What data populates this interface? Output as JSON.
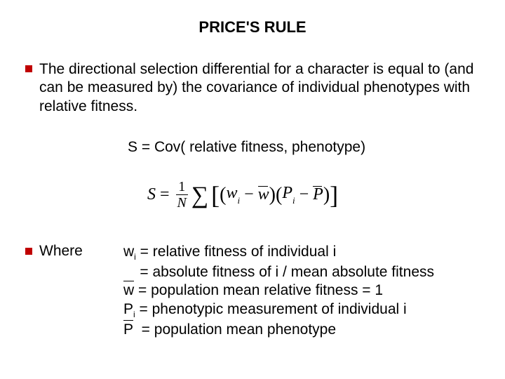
{
  "colors": {
    "background": "#ffffff",
    "text": "#000000",
    "bullet": "#c00000"
  },
  "title": "PRICE'S RULE",
  "bullet1": "The directional selection differential for a character is equal to (and can be measured by) the covariance of individual phenotypes with relative fitness.",
  "equation_text": "S = Cov( relative fitness, phenotype)",
  "formula": {
    "lhs": "S",
    "frac_num": "1",
    "frac_den": "N",
    "w": "w",
    "wbar": "w",
    "P": "P",
    "Pbar": "P",
    "sub": "i"
  },
  "where_label": "Where",
  "defs": {
    "wi": "relative fitness of individual i",
    "wi2": "absolute fitness of i / mean absolute fitness",
    "wbar": "population mean relative fitness = 1",
    "Pi": "phenotypic measurement of individual i",
    "Pbar": "population mean phenotype"
  }
}
